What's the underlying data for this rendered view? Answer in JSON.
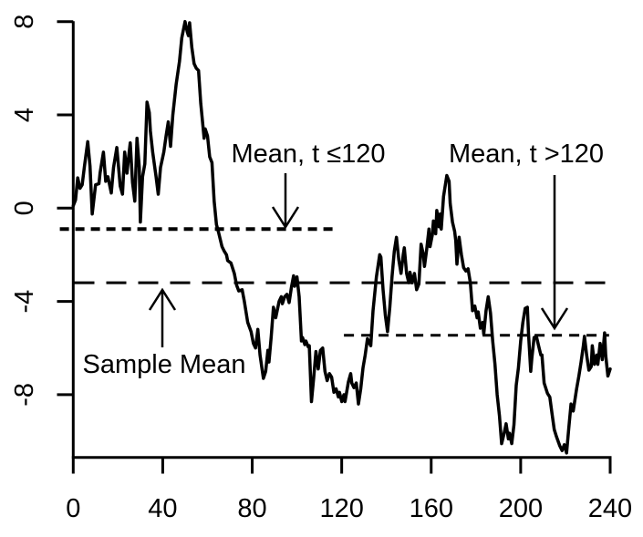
{
  "chart_data": {
    "type": "line",
    "title": "",
    "xlabel": "",
    "ylabel": "",
    "grid": false,
    "legend": "none",
    "background": "#ffffff",
    "line_color": "#000000",
    "xlim": [
      0,
      240
    ],
    "ylim": [
      -10.8,
      8.3
    ],
    "x_ticks": [
      "0",
      "40",
      "80",
      "120",
      "160",
      "200",
      "240"
    ],
    "x_tick_values": [
      0,
      40,
      80,
      120,
      160,
      200,
      240
    ],
    "y_ticks": [
      "-8",
      "-4",
      "0",
      "4",
      "8"
    ],
    "y_tick_values": [
      -8,
      -4,
      0,
      4,
      8
    ],
    "reference_lines": [
      {
        "name": "mean-first-half",
        "label": "Mean, t ≤120",
        "value": -0.9,
        "x_start": -6,
        "x_end": 117,
        "style": "bold-dash"
      },
      {
        "name": "sample-mean",
        "label": "Sample Mean",
        "value": -3.2,
        "x_start": 0.5,
        "x_end": 241,
        "style": "long-dash"
      },
      {
        "name": "mean-second-half",
        "label": "Mean, t >120",
        "value": -5.45,
        "x_start": 121,
        "x_end": 239.5,
        "style": "short-dash"
      }
    ],
    "annotations": [
      {
        "text": "Mean, t ≤120",
        "points_to": "mean-first-half",
        "arrow_direction": "down"
      },
      {
        "text": "Mean, t >120",
        "points_to": "mean-second-half",
        "arrow_direction": "down"
      },
      {
        "text": "Sample Mean",
        "points_to": "sample-mean",
        "arrow_direction": "up"
      }
    ],
    "series": [
      {
        "name": "time-series",
        "points": [
          [
            0,
            0.1
          ],
          [
            1,
            0.35
          ],
          [
            2,
            1.3
          ],
          [
            3,
            0.85
          ],
          [
            4,
            1.0
          ],
          [
            5,
            1.8
          ],
          [
            6.5,
            2.85
          ],
          [
            7.5,
            1.8
          ],
          [
            8.5,
            -0.25
          ],
          [
            10,
            1.0
          ],
          [
            11.5,
            1.05
          ],
          [
            12,
            1.5
          ],
          [
            13.5,
            2.4
          ],
          [
            14.5,
            1.15
          ],
          [
            15.5,
            1.35
          ],
          [
            17,
            0.65
          ],
          [
            18,
            1.75
          ],
          [
            19.5,
            2.6
          ],
          [
            21,
            0.95
          ],
          [
            22,
            0.6
          ],
          [
            23,
            2.4
          ],
          [
            24,
            1.5
          ],
          [
            25,
            2.4
          ],
          [
            25.5,
            2.8
          ],
          [
            26.5,
            1.1
          ],
          [
            27.5,
            0.3
          ],
          [
            28.5,
            3.0
          ],
          [
            29.5,
            1.75
          ],
          [
            30,
            -0.6
          ],
          [
            31,
            1.35
          ],
          [
            32,
            1.9
          ],
          [
            33,
            4.55
          ],
          [
            34,
            4.1
          ],
          [
            34.5,
            3.3
          ],
          [
            35.5,
            2.4
          ],
          [
            37,
            1.35
          ],
          [
            38,
            0.6
          ],
          [
            39,
            1.75
          ],
          [
            40.5,
            2.4
          ],
          [
            41.5,
            3.1
          ],
          [
            42.5,
            3.7
          ],
          [
            43.5,
            2.65
          ],
          [
            44.5,
            4.0
          ],
          [
            46,
            5.3
          ],
          [
            47.5,
            6.3
          ],
          [
            48.5,
            7.3
          ],
          [
            50,
            8.0
          ],
          [
            51,
            7.55
          ],
          [
            51.5,
            7.4
          ],
          [
            52,
            7.95
          ],
          [
            53,
            6.9
          ],
          [
            54,
            6.2
          ],
          [
            55,
            6.0
          ],
          [
            56,
            5.9
          ],
          [
            57,
            4.5
          ],
          [
            58.5,
            3.0
          ],
          [
            59,
            3.4
          ],
          [
            60,
            3.1
          ],
          [
            61,
            2.2
          ],
          [
            62,
            1.95
          ],
          [
            63,
            0.3
          ],
          [
            64,
            -0.7
          ],
          [
            65,
            -1.05
          ],
          [
            66.5,
            -1.65
          ],
          [
            67.5,
            -1.85
          ],
          [
            68.5,
            -2.0
          ],
          [
            69,
            -2.25
          ],
          [
            70.5,
            -2.35
          ],
          [
            72,
            -2.8
          ],
          [
            73,
            -3.3
          ],
          [
            74,
            -3.55
          ],
          [
            75.5,
            -3.5
          ],
          [
            76.5,
            -4.0
          ],
          [
            78,
            -4.9
          ],
          [
            79.5,
            -5.3
          ],
          [
            80.5,
            -5.8
          ],
          [
            81.5,
            -6.0
          ],
          [
            82.5,
            -5.2
          ],
          [
            83.5,
            -6.3
          ],
          [
            85,
            -7.3
          ],
          [
            86,
            -7.0
          ],
          [
            87,
            -6.1
          ],
          [
            87.5,
            -6.6
          ],
          [
            88.5,
            -5.5
          ],
          [
            89.5,
            -4.25
          ],
          [
            90.5,
            -4.7
          ],
          [
            92,
            -4.0
          ],
          [
            93,
            -3.8
          ],
          [
            93.5,
            -4.1
          ],
          [
            94.5,
            -3.8
          ],
          [
            95.5,
            -3.7
          ],
          [
            96.5,
            -4.05
          ],
          [
            97.5,
            -3.4
          ],
          [
            98.5,
            -2.9
          ],
          [
            99,
            -3.35
          ],
          [
            100,
            -2.95
          ],
          [
            101,
            -3.8
          ],
          [
            102,
            -5.7
          ],
          [
            102.5,
            -5.55
          ],
          [
            103.5,
            -5.85
          ],
          [
            104,
            -5.7
          ],
          [
            105,
            -5.95
          ],
          [
            105.5,
            -5.9
          ],
          [
            106.5,
            -8.3
          ],
          [
            107.5,
            -7.25
          ],
          [
            108.5,
            -6.15
          ],
          [
            109.5,
            -6.9
          ],
          [
            110.5,
            -6.1
          ],
          [
            111.5,
            -6.0
          ],
          [
            112.5,
            -7.0
          ],
          [
            113.5,
            -7.4
          ],
          [
            114.5,
            -7.1
          ],
          [
            115.5,
            -7.25
          ],
          [
            116.5,
            -7.9
          ],
          [
            117.5,
            -7.75
          ],
          [
            118.5,
            -8.1
          ],
          [
            119,
            -7.9
          ],
          [
            120,
            -8.3
          ],
          [
            121,
            -8.0
          ],
          [
            121.5,
            -8.3
          ],
          [
            123,
            -7.45
          ],
          [
            124,
            -7.1
          ],
          [
            124.5,
            -7.5
          ],
          [
            125.5,
            -7.7
          ],
          [
            126.5,
            -7.5
          ],
          [
            127.5,
            -8.4
          ],
          [
            128.5,
            -7.75
          ],
          [
            129.5,
            -6.85
          ],
          [
            130.5,
            -6.3
          ],
          [
            131.5,
            -5.6
          ],
          [
            133,
            -5.9
          ],
          [
            134,
            -4.4
          ],
          [
            135.5,
            -2.95
          ],
          [
            137,
            -2.0
          ],
          [
            137.5,
            -2.1
          ],
          [
            138.5,
            -3.5
          ],
          [
            139.5,
            -4.6
          ],
          [
            140.5,
            -5.3
          ],
          [
            141.5,
            -4.25
          ],
          [
            142.5,
            -2.95
          ],
          [
            143.5,
            -1.85
          ],
          [
            144.5,
            -1.25
          ],
          [
            145.5,
            -2.2
          ],
          [
            146.5,
            -2.8
          ],
          [
            147.5,
            -2.0
          ],
          [
            148,
            -1.7
          ],
          [
            149,
            -2.8
          ],
          [
            150,
            -3.2
          ],
          [
            150.5,
            -2.75
          ],
          [
            151.5,
            -3.2
          ],
          [
            152.5,
            -2.8
          ],
          [
            153.5,
            -3.5
          ],
          [
            154.5,
            -3.25
          ],
          [
            155.5,
            -1.55
          ],
          [
            156.5,
            -2.0
          ],
          [
            157,
            -2.5
          ],
          [
            158,
            -1.75
          ],
          [
            159,
            -0.9
          ],
          [
            159.5,
            -1.65
          ],
          [
            160.5,
            -1.15
          ],
          [
            161,
            -0.55
          ],
          [
            162,
            -1.1
          ],
          [
            162.5,
            -0.1
          ],
          [
            163.5,
            -0.8
          ],
          [
            164,
            -0.25
          ],
          [
            164.5,
            -0.9
          ],
          [
            165.5,
            0.5
          ],
          [
            167,
            1.4
          ],
          [
            168,
            1.15
          ],
          [
            168.5,
            0.2
          ],
          [
            169.5,
            -0.6
          ],
          [
            170.5,
            -1.0
          ],
          [
            171,
            -1.4
          ],
          [
            171.5,
            -2.4
          ],
          [
            172.5,
            -1.25
          ],
          [
            173.5,
            -2.0
          ],
          [
            174.5,
            -2.55
          ],
          [
            175.5,
            -2.7
          ],
          [
            176.5,
            -2.6
          ],
          [
            177.5,
            -3.2
          ],
          [
            178.5,
            -4.4
          ],
          [
            179.5,
            -4.2
          ],
          [
            180.5,
            -4.7
          ],
          [
            181,
            -4.45
          ],
          [
            182,
            -5.15
          ],
          [
            183,
            -4.9
          ],
          [
            183.5,
            -5.4
          ],
          [
            184.5,
            -4.4
          ],
          [
            185.5,
            -3.8
          ],
          [
            186.5,
            -4.5
          ],
          [
            187.5,
            -5.7
          ],
          [
            188.5,
            -6.7
          ],
          [
            189.5,
            -8.0
          ],
          [
            190.5,
            -8.9
          ],
          [
            191.5,
            -10.1
          ],
          [
            192.5,
            -9.7
          ],
          [
            193.5,
            -9.25
          ],
          [
            194.5,
            -9.9
          ],
          [
            195,
            -9.65
          ],
          [
            196,
            -10.1
          ],
          [
            197,
            -9.3
          ],
          [
            198,
            -7.6
          ],
          [
            199,
            -6.85
          ],
          [
            200,
            -5.7
          ],
          [
            201,
            -4.9
          ],
          [
            202,
            -4.3
          ],
          [
            203,
            -4.25
          ],
          [
            203.5,
            -5.4
          ],
          [
            204.5,
            -7.0
          ],
          [
            205,
            -6.45
          ],
          [
            206,
            -5.55
          ],
          [
            207,
            -5.5
          ],
          [
            208,
            -5.9
          ],
          [
            209,
            -6.3
          ],
          [
            209.5,
            -6.3
          ],
          [
            210.5,
            -7.5
          ],
          [
            212,
            -7.95
          ],
          [
            213,
            -8.1
          ],
          [
            214,
            -8.8
          ],
          [
            215,
            -9.5
          ],
          [
            216,
            -9.8
          ],
          [
            217.5,
            -10.2
          ],
          [
            218.5,
            -10.4
          ],
          [
            219.5,
            -10.15
          ],
          [
            220.5,
            -10.5
          ],
          [
            221.5,
            -9.45
          ],
          [
            222.5,
            -8.4
          ],
          [
            223.5,
            -8.7
          ],
          [
            225,
            -7.75
          ],
          [
            226,
            -7.2
          ],
          [
            227,
            -6.6
          ],
          [
            228,
            -5.9
          ],
          [
            228.5,
            -5.5
          ],
          [
            229.5,
            -6.3
          ],
          [
            230.5,
            -6.95
          ],
          [
            231.5,
            -6.8
          ],
          [
            232,
            -5.9
          ],
          [
            233,
            -6.7
          ],
          [
            234,
            -6.3
          ],
          [
            234.5,
            -6.7
          ],
          [
            235.5,
            -5.8
          ],
          [
            236.5,
            -6.5
          ],
          [
            237.5,
            -5.35
          ],
          [
            238,
            -6.3
          ],
          [
            239,
            -7.2
          ],
          [
            240,
            -6.9
          ]
        ]
      }
    ]
  }
}
